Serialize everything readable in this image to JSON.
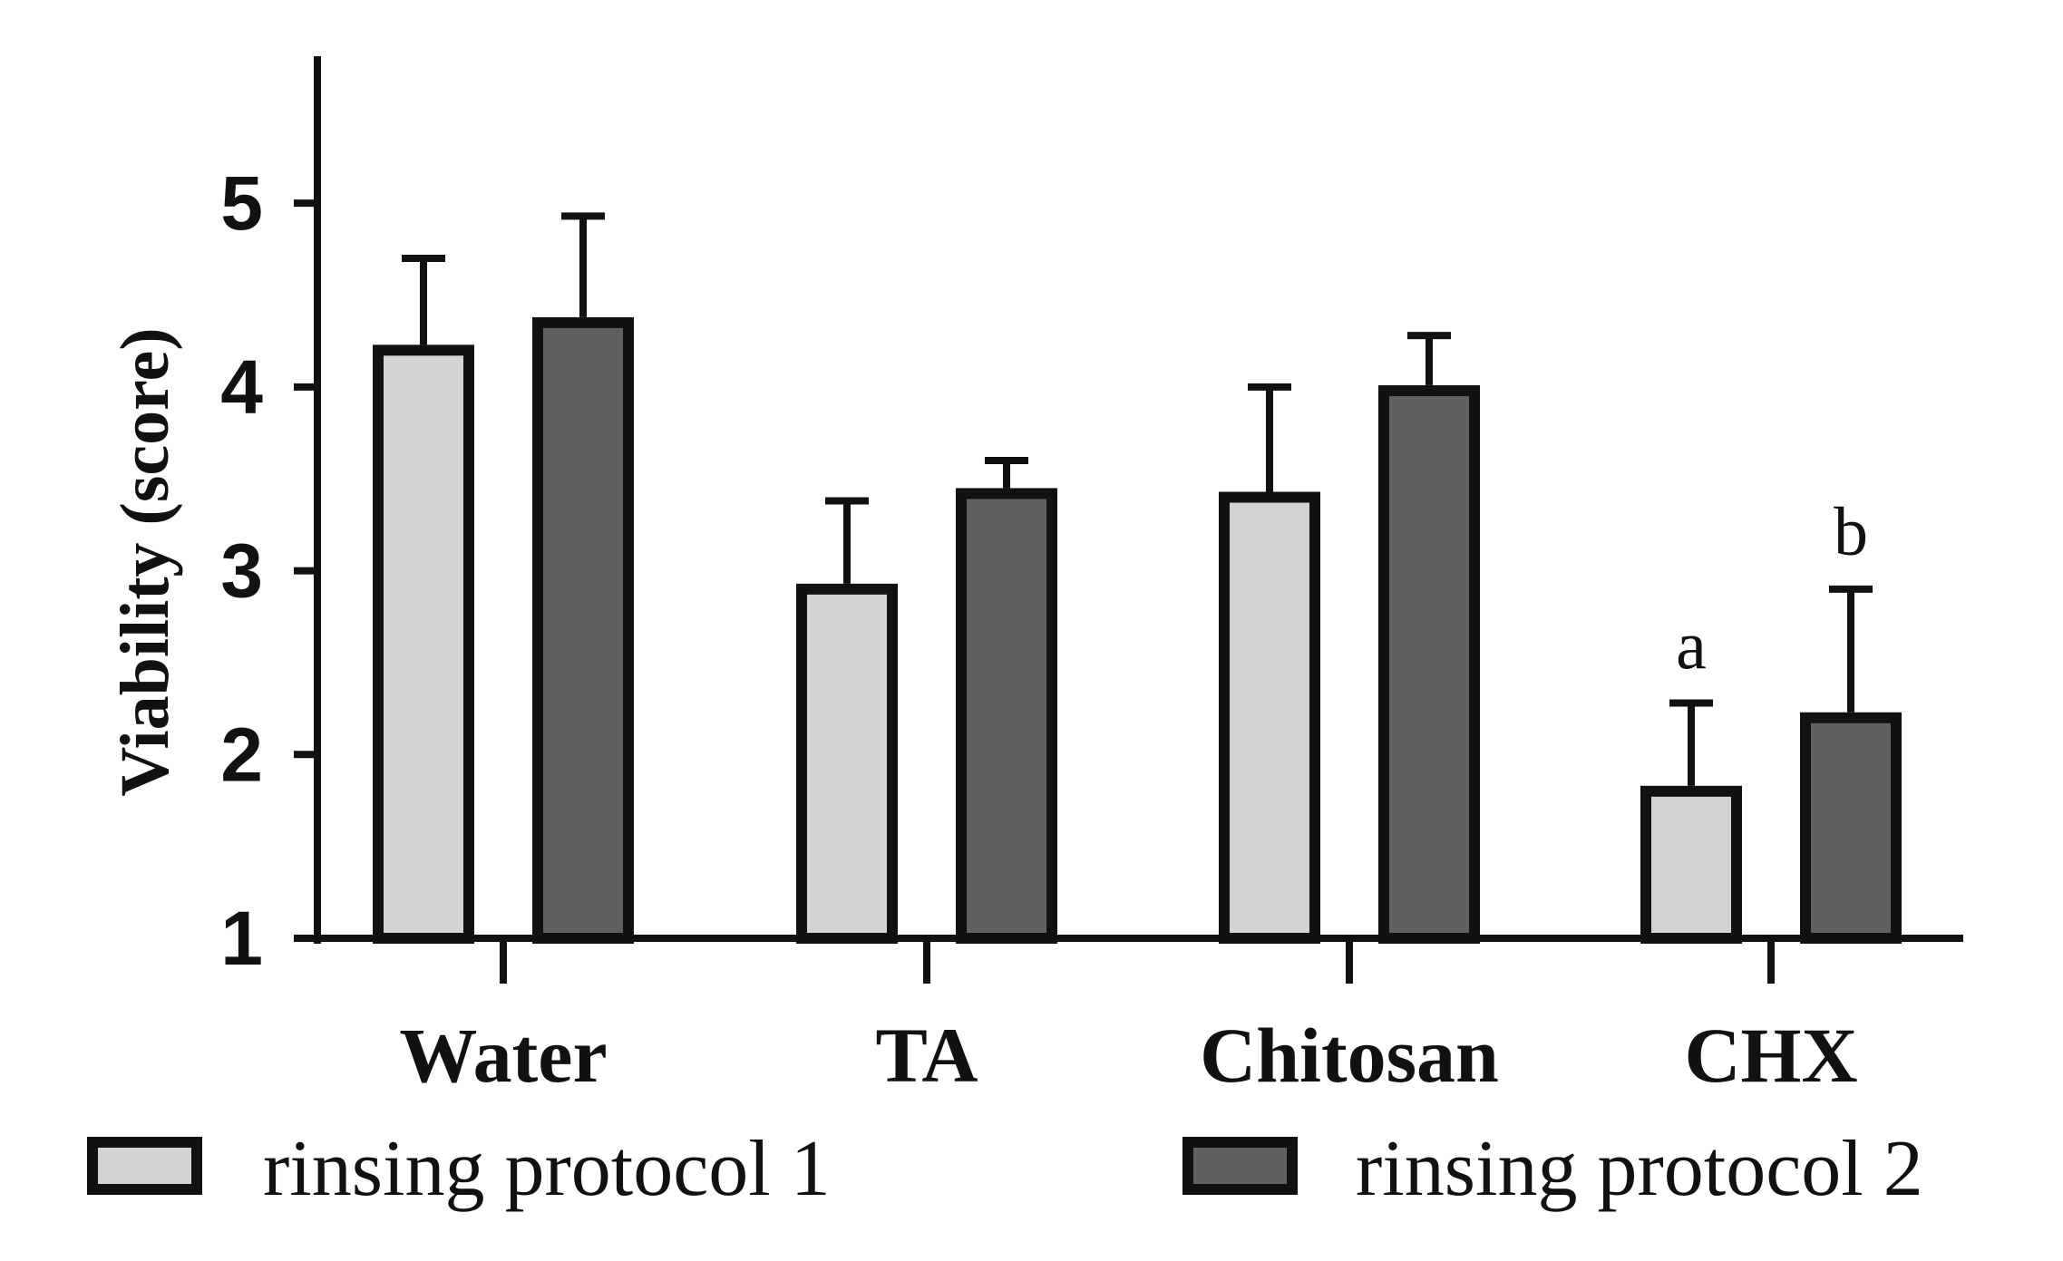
{
  "chart_data": {
    "type": "bar",
    "title": "",
    "xlabel": "",
    "ylabel": "Viability (score)",
    "ylim": [
      1,
      5.8
    ],
    "yticks": [
      1,
      2,
      3,
      4,
      5
    ],
    "categories": [
      "Water",
      "TA",
      "Chitosan",
      "CHX"
    ],
    "series": [
      {
        "name": "rinsing protocol 1",
        "color": "#d3d3d3",
        "values": [
          4.2,
          2.9,
          3.4,
          1.8
        ],
        "errors": [
          0.5,
          0.48,
          0.6,
          0.48
        ],
        "annotations": [
          "",
          "",
          "",
          "a"
        ]
      },
      {
        "name": "rinsing protocol 2",
        "color": "#606060",
        "values": [
          4.35,
          3.42,
          3.98,
          2.2
        ],
        "errors": [
          0.58,
          0.18,
          0.3,
          0.7
        ],
        "annotations": [
          "",
          "",
          "",
          "b"
        ]
      }
    ],
    "legend_position": "bottom",
    "grid": false
  }
}
